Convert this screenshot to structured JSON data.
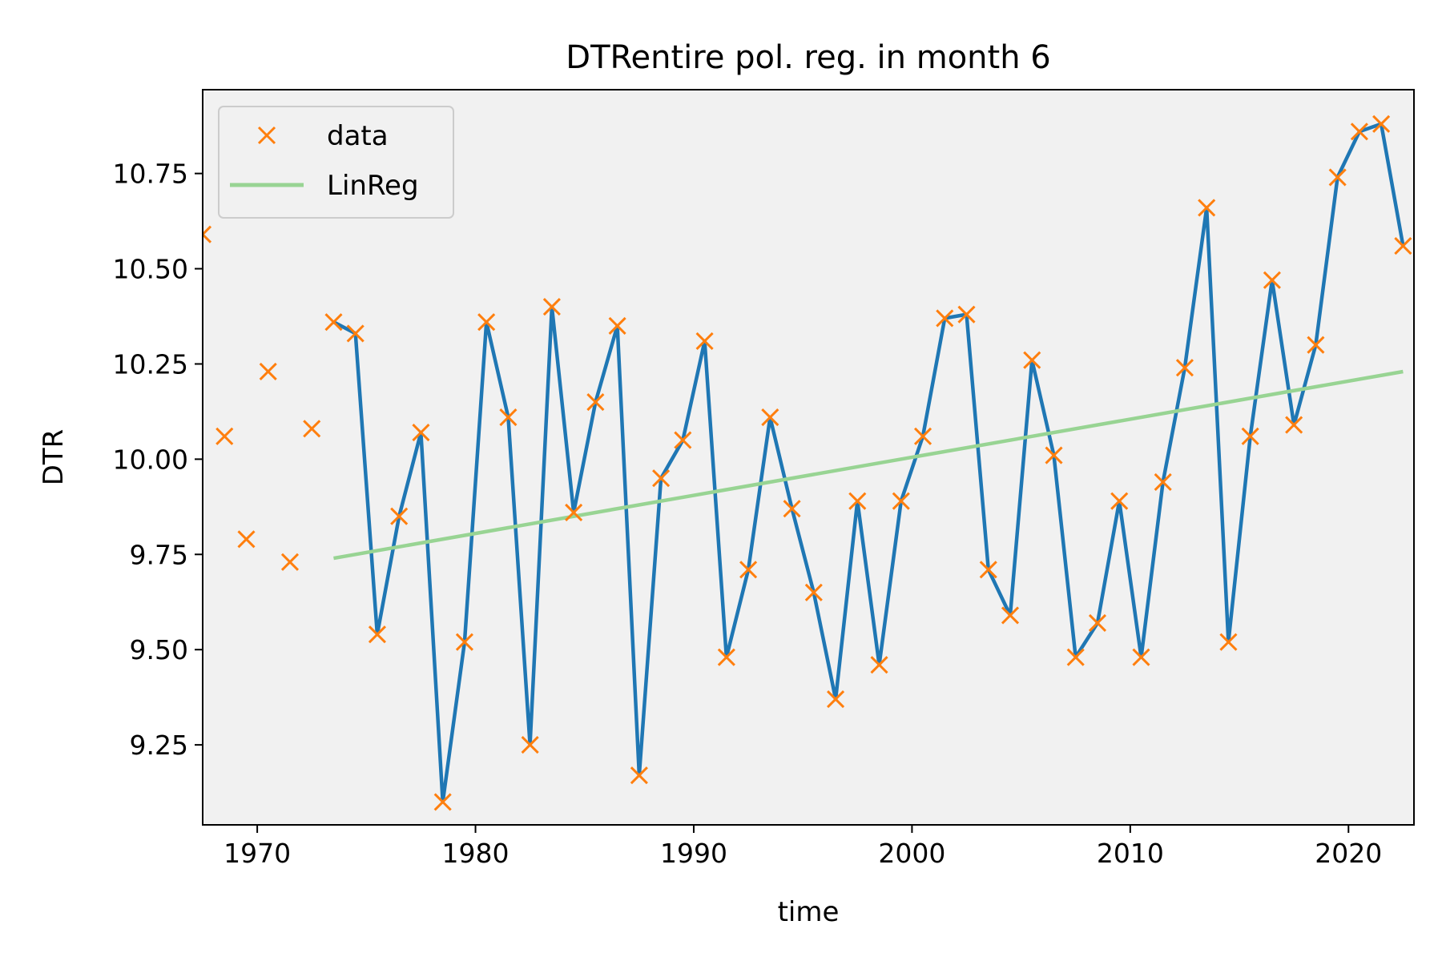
{
  "chart_data": {
    "type": "line",
    "title": "DTRentire pol. reg. in month 6",
    "xlabel": "time",
    "ylabel": "DTR",
    "xlim": [
      1967.5,
      2023.0
    ],
    "ylim": [
      9.04,
      10.97
    ],
    "xticks": [
      1970,
      1980,
      1990,
      2000,
      2010,
      2020
    ],
    "xtick_labels": [
      "1970",
      "1980",
      "1990",
      "2000",
      "2010",
      "2020"
    ],
    "yticks": [
      9.25,
      9.5,
      9.75,
      10.0,
      10.25,
      10.5,
      10.75
    ],
    "ytick_labels": [
      "9.25",
      "9.50",
      "9.75",
      "10.00",
      "10.25",
      "10.50",
      "10.75"
    ],
    "grid": false,
    "legend_position": "upper-left",
    "legend": [
      {
        "label": "data",
        "marker": "x",
        "color": "#ff7f0e"
      },
      {
        "label": "LinReg",
        "color": "#98d493"
      }
    ],
    "series": [
      {
        "marker": "x",
        "color": "#ff7f0e",
        "x": [
          1967.5,
          1968.5,
          1969.5,
          1970.5,
          1971.5,
          1972.5,
          1973.5,
          1974.5,
          1975.5,
          1976.5,
          1977.5,
          1978.5,
          1979.5,
          1980.5,
          1981.5,
          1982.5,
          1983.5,
          1984.5,
          1985.5,
          1986.5,
          1987.5,
          1988.5,
          1989.5,
          1990.5,
          1991.5,
          1992.5,
          1993.5,
          1994.5,
          1995.5,
          1996.5,
          1997.5,
          1998.5,
          1999.5,
          2000.5,
          2001.5,
          2002.5,
          2003.5,
          2004.5,
          2005.5,
          2006.5,
          2007.5,
          2008.5,
          2009.5,
          2010.5,
          2011.5,
          2012.5,
          2013.5,
          2014.5,
          2015.5,
          2016.5,
          2017.5,
          2018.5,
          2019.5,
          2020.5,
          2021.5,
          2022.5
        ],
        "y": [
          10.59,
          10.06,
          9.79,
          10.23,
          9.73,
          10.08,
          10.36,
          10.33,
          9.54,
          9.85,
          10.07,
          9.1,
          9.52,
          10.36,
          10.11,
          9.25,
          10.4,
          9.86,
          10.15,
          10.35,
          9.17,
          9.95,
          10.05,
          10.31,
          9.48,
          9.71,
          10.11,
          9.87,
          9.65,
          9.37,
          9.89,
          9.46,
          9.89,
          10.06,
          10.37,
          10.38,
          9.71,
          9.59,
          10.26,
          10.01,
          9.48,
          9.57,
          9.89,
          9.48,
          9.94,
          10.24,
          10.66,
          9.52,
          10.06,
          10.47,
          10.09,
          10.3,
          10.74,
          10.86,
          10.88,
          10.56
        ]
      },
      {
        "color": "#1f77b4",
        "x": [
          1973.5,
          1974.5,
          1975.5,
          1976.5,
          1977.5,
          1978.5,
          1979.5,
          1980.5,
          1981.5,
          1982.5,
          1983.5,
          1984.5,
          1985.5,
          1986.5,
          1987.5,
          1988.5,
          1989.5,
          1990.5,
          1991.5,
          1992.5,
          1993.5,
          1994.5,
          1995.5,
          1996.5,
          1997.5,
          1998.5,
          1999.5,
          2000.5,
          2001.5,
          2002.5,
          2003.5,
          2004.5,
          2005.5,
          2006.5,
          2007.5,
          2008.5,
          2009.5,
          2010.5,
          2011.5,
          2012.5,
          2013.5,
          2014.5,
          2015.5,
          2016.5,
          2017.5,
          2018.5,
          2019.5,
          2020.5,
          2021.5,
          2022.5
        ],
        "y": [
          10.36,
          10.33,
          9.54,
          9.85,
          10.07,
          9.1,
          9.52,
          10.36,
          10.11,
          9.25,
          10.4,
          9.86,
          10.15,
          10.35,
          9.17,
          9.95,
          10.05,
          10.31,
          9.48,
          9.71,
          10.11,
          9.87,
          9.65,
          9.37,
          9.89,
          9.46,
          9.89,
          10.06,
          10.37,
          10.38,
          9.71,
          9.59,
          10.26,
          10.01,
          9.48,
          9.57,
          9.89,
          9.48,
          9.94,
          10.24,
          10.66,
          9.52,
          10.06,
          10.47,
          10.09,
          10.3,
          10.74,
          10.86,
          10.88,
          10.56
        ]
      },
      {
        "name": "LinReg",
        "color": "#98d493",
        "x": [
          1973.5,
          2022.5
        ],
        "y": [
          9.74,
          10.23
        ]
      }
    ]
  }
}
